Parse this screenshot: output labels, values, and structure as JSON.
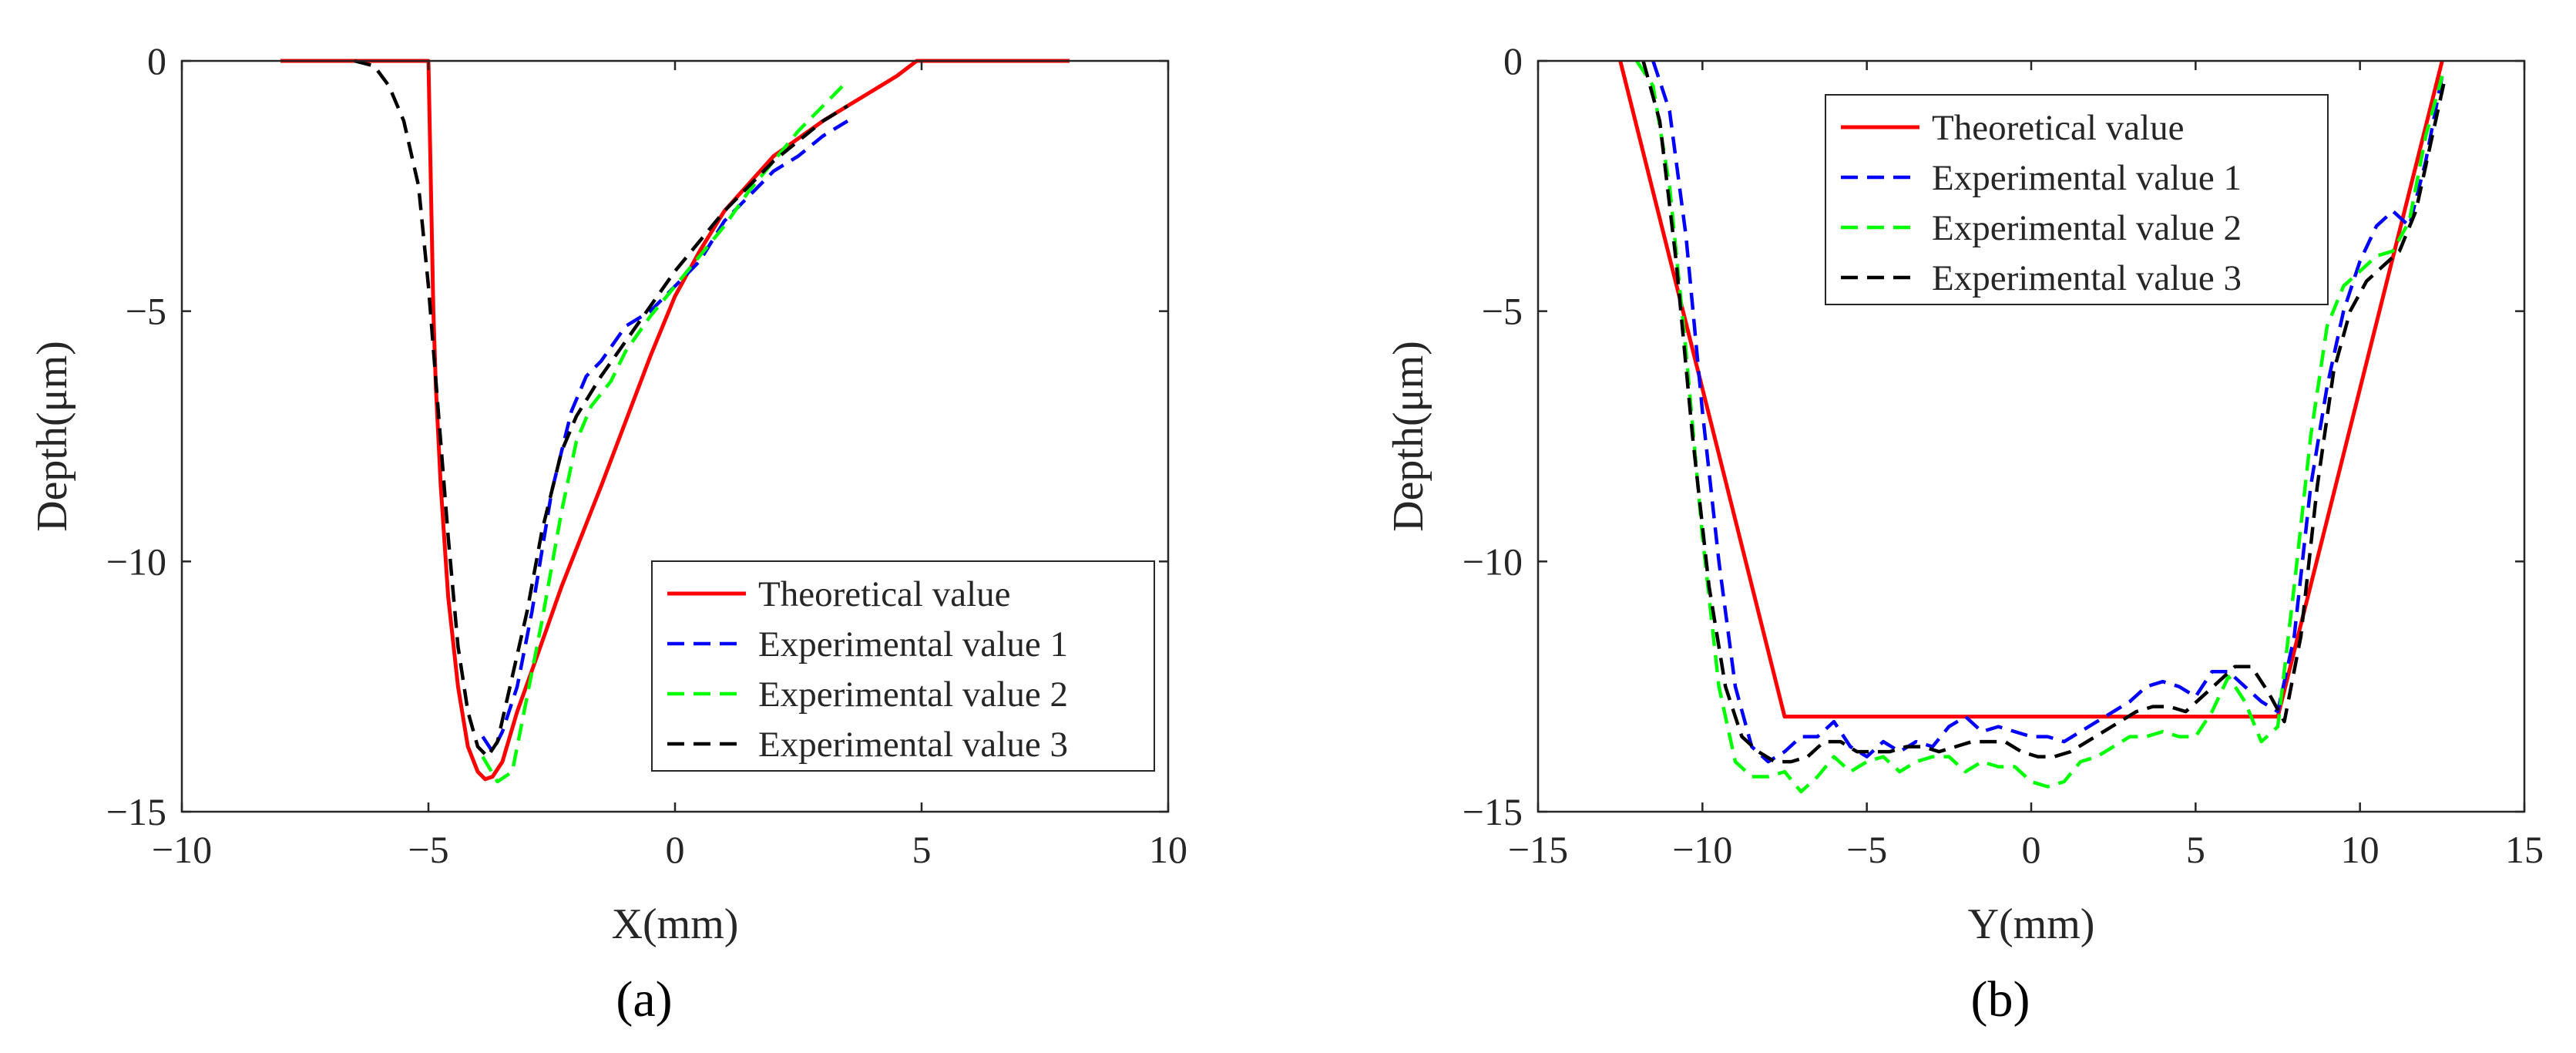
{
  "chart_data": [
    {
      "type": "line",
      "panel_label": "(a)",
      "xlabel": "X(mm)",
      "ylabel": "Depth(μm)",
      "xlim": [
        -10,
        10
      ],
      "ylim": [
        -15,
        0
      ],
      "xticks": [
        -10,
        -5,
        0,
        5,
        10
      ],
      "yticks": [
        0,
        -5,
        -10,
        -15
      ],
      "xtick_labels": [
        "−10",
        "−5",
        "0",
        "5",
        "10"
      ],
      "ytick_labels": [
        "0",
        "−5",
        "−10",
        "−15"
      ],
      "legend_position": "bottom-right",
      "series": [
        {
          "name": "Theoretical value",
          "color": "#ff0000",
          "dash": "solid",
          "x": [
            -8,
            -5,
            -4.95,
            -4.9,
            -4.85,
            -4.75,
            -4.6,
            -4.4,
            -4.2,
            -4.0,
            -3.85,
            -3.7,
            -3.5,
            -3.2,
            -2.8,
            -2.3,
            -1.5,
            -1.0,
            -0.5,
            0.0,
            0.5,
            1.0,
            2.0,
            3.0,
            3.5,
            4.0,
            4.5,
            4.9,
            5.0,
            8.0
          ],
          "y": [
            0,
            0,
            -2.5,
            -5,
            -6.5,
            -8.5,
            -10.7,
            -12.5,
            -13.7,
            -14.2,
            -14.35,
            -14.3,
            -14.0,
            -13.0,
            -11.9,
            -10.5,
            -8.5,
            -7.2,
            -5.9,
            -4.7,
            -3.8,
            -3.0,
            -1.9,
            -1.2,
            -0.9,
            -0.6,
            -0.3,
            0,
            0,
            0
          ]
        },
        {
          "name": "Experimental value 1",
          "color": "#0000ff",
          "dash": "dashed",
          "x": [
            -3.9,
            -3.7,
            -3.5,
            -3.2,
            -2.9,
            -2.5,
            -2.1,
            -1.8,
            -1.5,
            -1.0,
            -0.5,
            0.0,
            0.5,
            1.0,
            1.5,
            2.0,
            2.5,
            3.0,
            3.5
          ],
          "y": [
            -13.5,
            -13.8,
            -13.4,
            -12.5,
            -11.0,
            -8.6,
            -7.0,
            -6.3,
            -6.0,
            -5.3,
            -5.0,
            -4.5,
            -4.0,
            -3.2,
            -2.7,
            -2.2,
            -1.9,
            -1.5,
            -1.2
          ]
        },
        {
          "name": "Experimental value 2",
          "color": "#00ff00",
          "dash": "dashed",
          "x": [
            -3.9,
            -3.6,
            -3.3,
            -3.0,
            -2.7,
            -2.3,
            -2.0,
            -1.7,
            -1.3,
            -1.0,
            -0.5,
            0.0,
            0.5,
            1.0,
            1.5,
            2.0,
            2.5,
            3.0,
            3.5
          ],
          "y": [
            -13.9,
            -14.4,
            -14.2,
            -12.7,
            -11.2,
            -9.0,
            -7.6,
            -6.9,
            -6.4,
            -5.8,
            -5.1,
            -4.5,
            -3.9,
            -3.3,
            -2.6,
            -2.0,
            -1.4,
            -0.9,
            -0.4
          ]
        },
        {
          "name": "Experimental value 3",
          "color": "#000000",
          "dash": "dashed",
          "x": [
            -6.5,
            -6.1,
            -5.8,
            -5.5,
            -5.2,
            -5.0,
            -4.8,
            -4.6,
            -4.4,
            -4.2,
            -4.0,
            -3.8,
            -3.6,
            -3.3,
            -3.0,
            -2.7,
            -2.3,
            -2.0,
            -1.5,
            -1.0,
            -0.5,
            0.0,
            0.5,
            1.0,
            1.5,
            2.0,
            2.5,
            3.0,
            3.5
          ],
          "y": [
            0,
            -0.1,
            -0.5,
            -1.2,
            -2.5,
            -4.5,
            -7.0,
            -9.5,
            -11.7,
            -13.0,
            -13.7,
            -13.9,
            -13.6,
            -12.3,
            -11.0,
            -9.4,
            -7.8,
            -7.1,
            -6.3,
            -5.6,
            -4.9,
            -4.2,
            -3.6,
            -3.0,
            -2.5,
            -2.0,
            -1.6,
            -1.2,
            -0.9
          ]
        }
      ]
    },
    {
      "type": "line",
      "panel_label": "(b)",
      "xlabel": "Y(mm)",
      "ylabel": "Depth(μm)",
      "xlim": [
        -15,
        15
      ],
      "ylim": [
        -15,
        0
      ],
      "xticks": [
        -15,
        -10,
        -5,
        0,
        5,
        10,
        15
      ],
      "yticks": [
        0,
        -5,
        -10,
        -15
      ],
      "xtick_labels": [
        "−15",
        "−10",
        "−5",
        "0",
        "5",
        "10",
        "15"
      ],
      "ytick_labels": [
        "0",
        "−5",
        "−10",
        "−15"
      ],
      "legend_position": "top-right",
      "series": [
        {
          "name": "Theoretical value",
          "color": "#ff0000",
          "dash": "solid",
          "x": [
            -12.5,
            -7.5,
            7.5,
            12.5
          ],
          "y": [
            0,
            -13.1,
            -13.1,
            0
          ]
        },
        {
          "name": "Experimental value 1",
          "color": "#0000ff",
          "dash": "dashed",
          "x": [
            -11.5,
            -11.0,
            -10.5,
            -10.0,
            -9.5,
            -9.0,
            -8.5,
            -8.0,
            -7.5,
            -7.0,
            -6.5,
            -6.0,
            -5.5,
            -5.0,
            -4.5,
            -4.0,
            -3.5,
            -3.0,
            -2.5,
            -2.0,
            -1.5,
            -1.0,
            -0.5,
            0.0,
            0.5,
            1.0,
            1.5,
            2.0,
            2.5,
            3.0,
            3.5,
            4.0,
            4.5,
            5.0,
            5.5,
            6.0,
            6.5,
            7.0,
            7.5,
            8.0,
            8.5,
            9.0,
            9.5,
            10.0,
            10.5,
            11.0,
            11.5,
            12.0,
            12.5
          ],
          "y": [
            0,
            -1.0,
            -3.5,
            -7.0,
            -10.0,
            -12.5,
            -13.7,
            -14.0,
            -13.8,
            -13.5,
            -13.5,
            -13.2,
            -13.7,
            -13.9,
            -13.6,
            -13.8,
            -13.6,
            -13.7,
            -13.3,
            -13.1,
            -13.4,
            -13.3,
            -13.4,
            -13.5,
            -13.5,
            -13.6,
            -13.4,
            -13.2,
            -13.0,
            -12.8,
            -12.5,
            -12.4,
            -12.5,
            -12.7,
            -12.2,
            -12.2,
            -12.5,
            -12.8,
            -13.0,
            -11.5,
            -8.5,
            -6.5,
            -5.0,
            -4.0,
            -3.3,
            -3.0,
            -3.3,
            -2.0,
            -0.3
          ]
        },
        {
          "name": "Experimental value 2",
          "color": "#00ff00",
          "dash": "dashed",
          "x": [
            -12.0,
            -11.5,
            -11.0,
            -10.5,
            -10.0,
            -9.5,
            -9.0,
            -8.5,
            -8.0,
            -7.5,
            -7.0,
            -6.5,
            -6.0,
            -5.5,
            -5.0,
            -4.5,
            -4.0,
            -3.5,
            -3.0,
            -2.5,
            -2.0,
            -1.5,
            -1.0,
            -0.5,
            0.0,
            0.5,
            1.0,
            1.5,
            2.0,
            2.5,
            3.0,
            3.5,
            4.0,
            4.5,
            5.0,
            5.5,
            6.0,
            6.5,
            7.0,
            7.5,
            8.0,
            8.5,
            9.0,
            9.5,
            10.0,
            10.5,
            11.0,
            11.5,
            12.0,
            12.5
          ],
          "y": [
            0,
            -0.5,
            -2.5,
            -5.8,
            -9.5,
            -12.5,
            -14.0,
            -14.3,
            -14.3,
            -14.2,
            -14.6,
            -14.3,
            -13.9,
            -14.2,
            -14.0,
            -13.9,
            -14.2,
            -14.0,
            -13.9,
            -13.9,
            -14.2,
            -14.0,
            -14.1,
            -14.1,
            -14.4,
            -14.5,
            -14.4,
            -14.0,
            -13.9,
            -13.7,
            -13.5,
            -13.5,
            -13.4,
            -13.5,
            -13.5,
            -13.0,
            -12.3,
            -12.8,
            -13.6,
            -13.3,
            -10.5,
            -7.5,
            -5.3,
            -4.5,
            -4.2,
            -3.9,
            -3.8,
            -3.2,
            -1.5,
            -0.3
          ]
        },
        {
          "name": "Experimental value 3",
          "color": "#000000",
          "dash": "dashed",
          "x": [
            -11.8,
            -11.3,
            -10.8,
            -10.3,
            -9.8,
            -9.3,
            -8.8,
            -8.3,
            -7.8,
            -7.3,
            -6.8,
            -6.3,
            -5.8,
            -5.3,
            -4.8,
            -4.3,
            -3.8,
            -3.3,
            -2.8,
            -2.3,
            -1.8,
            -1.3,
            -0.8,
            -0.3,
            0.2,
            0.7,
            1.2,
            1.7,
            2.2,
            2.7,
            3.2,
            3.7,
            4.2,
            4.7,
            5.2,
            5.7,
            6.2,
            6.7,
            7.2,
            7.7,
            8.2,
            8.7,
            9.2,
            9.7,
            10.2,
            10.7,
            11.2,
            11.7,
            12.2,
            12.6
          ],
          "y": [
            0,
            -1.2,
            -4.0,
            -7.5,
            -10.5,
            -12.5,
            -13.5,
            -13.8,
            -14.0,
            -14.0,
            -13.9,
            -13.6,
            -13.6,
            -13.8,
            -13.8,
            -13.8,
            -13.7,
            -13.7,
            -13.8,
            -13.7,
            -13.6,
            -13.6,
            -13.6,
            -13.8,
            -13.9,
            -13.9,
            -13.8,
            -13.6,
            -13.4,
            -13.2,
            -13.0,
            -12.9,
            -12.9,
            -13.0,
            -12.7,
            -12.4,
            -12.1,
            -12.1,
            -12.6,
            -13.2,
            -11.5,
            -8.5,
            -6.2,
            -5.0,
            -4.4,
            -4.1,
            -3.8,
            -3.0,
            -1.5,
            -0.3
          ]
        }
      ]
    }
  ]
}
